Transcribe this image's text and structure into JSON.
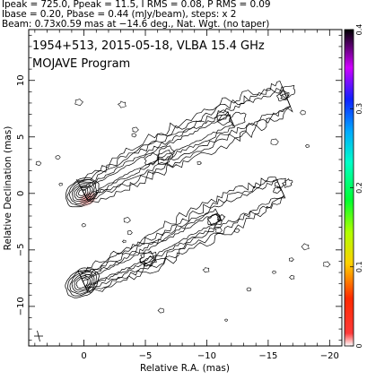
{
  "header": {
    "line1": "Ipeak = 725.0, Ppeak = 11.5, I RMS = 0.08, P RMS = 0.09",
    "line2": "Ibase = 0.20, Pbase = 0.44 (mJy/beam), steps: x 2",
    "line3": "Beam: 0.73x0.59 mas at −14.6 deg., Nat. Wgt. (no taper)"
  },
  "chart_data": {
    "type": "contour",
    "title": "1954+513, 2015-05-18, VLBA 15.4 GHz",
    "subtitle": "MOJAVE Program",
    "xlabel": "Relative R.A. (mas)",
    "ylabel": "Relative Declination (mas)",
    "xlim": [
      4.5,
      -21
    ],
    "ylim": [
      -13.5,
      14.5
    ],
    "x_ticks": [
      0,
      -5,
      -10,
      -15,
      -20
    ],
    "x_tick_labels": [
      "0",
      "−5",
      "−10",
      "−15",
      "−20"
    ],
    "y_ticks": [
      10,
      5,
      0,
      -5,
      -10
    ],
    "y_tick_labels": [
      "10",
      "5",
      "0",
      "−5",
      "−10"
    ],
    "colorbar": {
      "ticks": [
        0.4,
        0.3,
        0.2,
        0.1,
        0
      ],
      "tick_labels": [
        "0.4",
        "0.3",
        "0.2",
        "0.1",
        "0"
      ]
    },
    "image_1": {
      "core": [
        0,
        0
      ],
      "jet_axis": [
        [
          0,
          0
        ],
        [
          -6,
          3.5
        ],
        [
          -12,
          6.5
        ],
        [
          -16.5,
          8.5
        ]
      ],
      "core_levels": 7,
      "color_peak_region": [
        -0.3,
        -0.5
      ]
    },
    "image_2": {
      "core": [
        0,
        -8
      ],
      "jet_axis": [
        [
          0,
          -8
        ],
        [
          -5,
          -5.5
        ],
        [
          -11,
          -2
        ],
        [
          -16,
          0.5
        ]
      ],
      "core_levels": 6
    },
    "beam": {
      "major": 0.73,
      "minor": 0.59,
      "pa": -14.6
    },
    "grid": false
  }
}
